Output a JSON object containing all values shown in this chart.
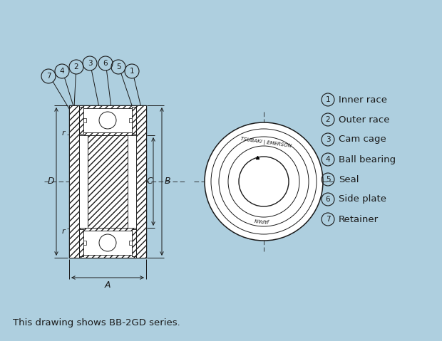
{
  "bg_color": "#aecfdf",
  "line_color": "#1a1a1a",
  "legend_items": [
    {
      "num": 1,
      "label": "Inner race"
    },
    {
      "num": 2,
      "label": "Outer race"
    },
    {
      "num": 3,
      "label": "Cam cage"
    },
    {
      "num": 4,
      "label": "Ball bearing"
    },
    {
      "num": 5,
      "label": "Seal"
    },
    {
      "num": 6,
      "label": "Side plate"
    },
    {
      "num": 7,
      "label": "Retainer"
    }
  ],
  "caption": "This drawing shows BB-2GD series.",
  "callout_order": [
    7,
    4,
    2,
    3,
    6,
    5,
    1
  ],
  "front_text_top": "TSUBAKI | EMERSON",
  "front_text_bottom": "JAPAN"
}
